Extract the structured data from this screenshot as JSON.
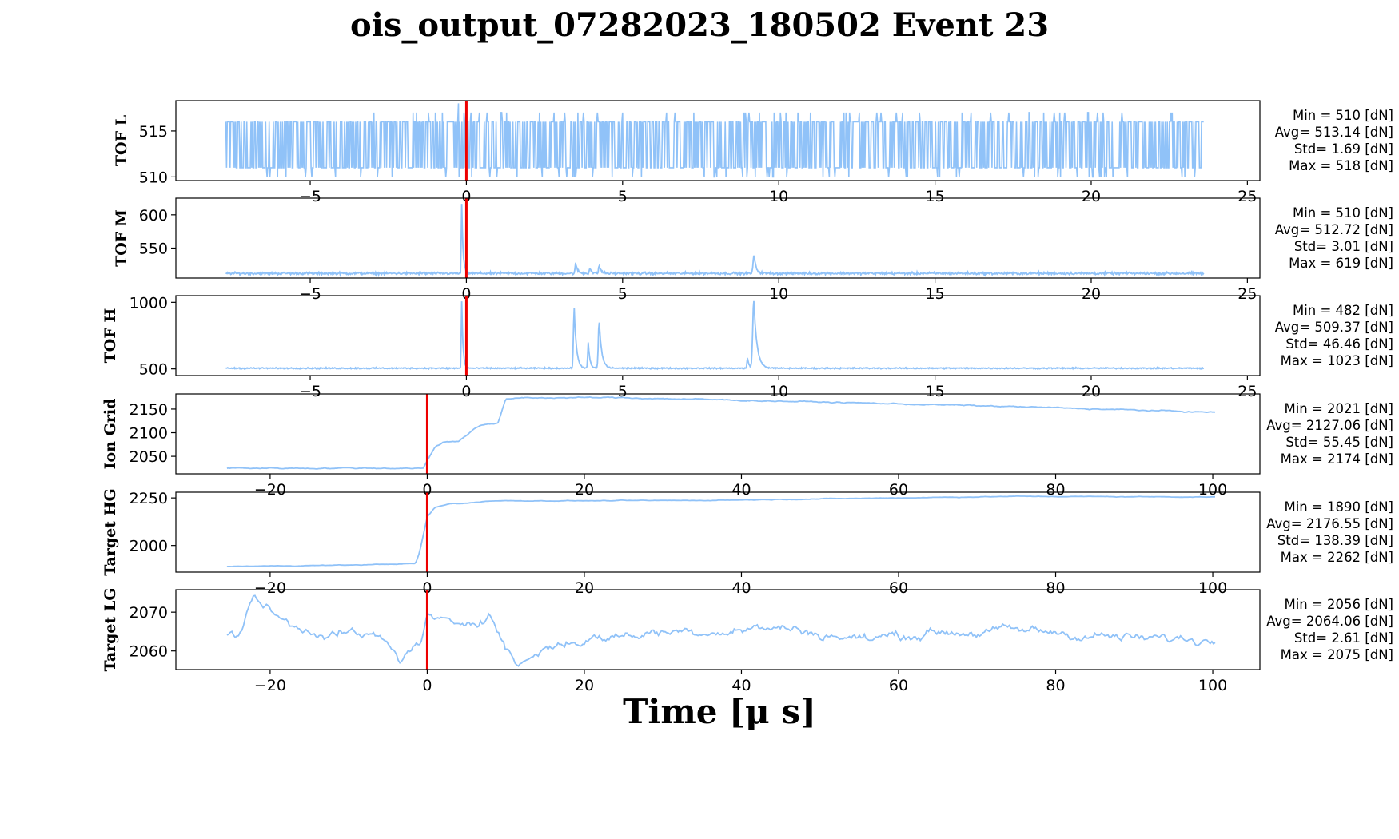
{
  "title": "ois_output_07282023_180502 Event 23",
  "xlabel": "Time [μ s]",
  "colors": {
    "line": "#90c2f8",
    "marker": "#ee0000",
    "axis": "#000000"
  },
  "chart_data": [
    {
      "type": "line",
      "ylabel": "TOF L",
      "xlim": [
        -9.3,
        25.4
      ],
      "ylim": [
        509.6,
        518.3
      ],
      "xticks": [
        -5,
        0,
        5,
        10,
        15,
        20,
        25
      ],
      "xtick_labels": [
        "−5",
        "0",
        "5",
        "10",
        "15",
        "20",
        "25"
      ],
      "yticks": [
        510,
        515
      ],
      "ytick_labels": [
        "510",
        "515"
      ],
      "series": [
        {
          "x_range": [
            -7.7,
            23.6
          ],
          "pattern": "digital_noise",
          "base": 513.1,
          "low": 511,
          "high": 516,
          "rare_low": 510,
          "rare_high": 517,
          "spikes": [
            [
              -1.0,
              517
            ],
            [
              -0.25,
              518
            ],
            [
              2.8,
              517
            ],
            [
              4.2,
              517
            ],
            [
              5.0,
              517
            ],
            [
              19.0,
              517
            ]
          ]
        }
      ],
      "marker_x": 0,
      "stats": [
        "Min = 510 [dN]",
        "Avg= 513.14 [dN]",
        "Std= 1.69 [dN]",
        "Max = 518 [dN]"
      ]
    },
    {
      "type": "line",
      "ylabel": "TOF M",
      "xlim": [
        -9.3,
        25.4
      ],
      "ylim": [
        505,
        625
      ],
      "xticks": [
        -5,
        0,
        5,
        10,
        15,
        20,
        25
      ],
      "xtick_labels": [
        "−5",
        "0",
        "5",
        "10",
        "15",
        "20",
        "25"
      ],
      "yticks": [
        550,
        600
      ],
      "ytick_labels": [
        "550",
        "600"
      ],
      "series": [
        {
          "x_range": [
            -7.7,
            23.6
          ],
          "pattern": "baseline_peaks",
          "base": 512,
          "noise": 1.5,
          "peaks": [
            [
              -0.15,
              619,
              0.04
            ],
            [
              3.5,
              526,
              0.06
            ],
            [
              3.95,
              521,
              0.05
            ],
            [
              4.25,
              524,
              0.06
            ],
            [
              9.2,
              540,
              0.07
            ]
          ]
        }
      ],
      "marker_x": 0,
      "stats": [
        "Min = 510 [dN]",
        "Avg= 512.72 [dN]",
        "Std= 3.01 [dN]",
        "Max = 619 [dN]"
      ]
    },
    {
      "type": "line",
      "ylabel": "TOF H",
      "xlim": [
        -9.3,
        25.4
      ],
      "ylim": [
        450,
        1050
      ],
      "xticks": [
        -5,
        0,
        5,
        10,
        15,
        20,
        25
      ],
      "xtick_labels": [
        "−5",
        "0",
        "5",
        "10",
        "15",
        "20",
        "25"
      ],
      "yticks": [
        500,
        1000
      ],
      "ytick_labels": [
        "500",
        "1000"
      ],
      "series": [
        {
          "x_range": [
            -7.7,
            23.6
          ],
          "pattern": "baseline_peaks",
          "base": 505,
          "noise": 4,
          "peaks": [
            [
              -0.15,
              1023,
              0.04
            ],
            [
              3.45,
              960,
              0.07
            ],
            [
              3.9,
              700,
              0.05
            ],
            [
              4.25,
              860,
              0.08
            ],
            [
              9.0,
              580,
              0.05
            ],
            [
              9.2,
              1020,
              0.1
            ]
          ]
        }
      ],
      "marker_x": 0,
      "stats": [
        "Min = 482 [dN]",
        "Avg= 509.37 [dN]",
        "Std= 46.46 [dN]",
        "Max = 1023 [dN]"
      ]
    },
    {
      "type": "line",
      "ylabel": "Ion Grid",
      "xlim": [
        -32,
        106
      ],
      "ylim": [
        2013,
        2182
      ],
      "xticks": [
        -20,
        0,
        20,
        40,
        60,
        80,
        100
      ],
      "xtick_labels": [
        "−20",
        "0",
        "20",
        "40",
        "60",
        "80",
        "100"
      ],
      "yticks": [
        2050,
        2100,
        2150
      ],
      "ytick_labels": [
        "2050",
        "2100",
        "2150"
      ],
      "series": [
        {
          "x_range": [
            -25.5,
            100.3
          ],
          "pattern": "piecewise",
          "noise": 1.2,
          "points": [
            [
              -25.5,
              2025
            ],
            [
              -0.5,
              2025
            ],
            [
              0,
              2040
            ],
            [
              1,
              2070
            ],
            [
              2,
              2080
            ],
            [
              4,
              2082
            ],
            [
              5,
              2095
            ],
            [
              6,
              2110
            ],
            [
              7,
              2117
            ],
            [
              8,
              2118
            ],
            [
              9,
              2120
            ],
            [
              10,
              2170
            ],
            [
              12,
              2174
            ],
            [
              25,
              2174
            ],
            [
              50,
              2165
            ],
            [
              75,
              2155
            ],
            [
              100.3,
              2143
            ]
          ]
        }
      ],
      "marker_x": 0,
      "stats": [
        "Min = 2021 [dN]",
        "Avg= 2127.06 [dN]",
        "Std= 55.45 [dN]",
        "Max = 2174 [dN]"
      ]
    },
    {
      "type": "line",
      "ylabel": "Target HG",
      "xlim": [
        -32,
        106
      ],
      "ylim": [
        1860,
        2280
      ],
      "xticks": [
        -20,
        0,
        20,
        40,
        60,
        80,
        100
      ],
      "xtick_labels": [
        "−20",
        "0",
        "20",
        "40",
        "60",
        "80",
        "100"
      ],
      "yticks": [
        2000,
        2250
      ],
      "ytick_labels": [
        "2000",
        "2250"
      ],
      "series": [
        {
          "x_range": [
            -25.5,
            100.3
          ],
          "pattern": "piecewise",
          "noise": 1.5,
          "points": [
            [
              -25.5,
              1890
            ],
            [
              -10,
              1897
            ],
            [
              -1.5,
              1905
            ],
            [
              -1,
              1960
            ],
            [
              0,
              2150
            ],
            [
              1,
              2200
            ],
            [
              3,
              2220
            ],
            [
              5,
              2222
            ],
            [
              8,
              2235
            ],
            [
              20,
              2235
            ],
            [
              35,
              2237
            ],
            [
              50,
              2245
            ],
            [
              75,
              2258
            ],
            [
              100.3,
              2255
            ]
          ]
        }
      ],
      "marker_x": 0,
      "stats": [
        "Min = 1890 [dN]",
        "Avg= 2176.55 [dN]",
        "Std= 138.39 [dN]",
        "Max = 2262 [dN]"
      ]
    },
    {
      "type": "line",
      "ylabel": "Target LG",
      "xlim": [
        -32,
        106
      ],
      "ylim": [
        2055.2,
        2075.8
      ],
      "xticks": [
        -20,
        0,
        20,
        40,
        60,
        80,
        100
      ],
      "xtick_labels": [
        "−20",
        "0",
        "20",
        "40",
        "60",
        "80",
        "100"
      ],
      "yticks": [
        2060,
        2070
      ],
      "ytick_labels": [
        "2060",
        "2070"
      ],
      "series": [
        {
          "x_range": [
            -25.5,
            100.3
          ],
          "pattern": "random_walk",
          "noise": 1.3,
          "points": [
            [
              -25.5,
              2064
            ],
            [
              -24,
              2064
            ],
            [
              -22,
              2075
            ],
            [
              -20,
              2070
            ],
            [
              -17,
              2066
            ],
            [
              -12,
              2065
            ],
            [
              -6,
              2063
            ],
            [
              -3.5,
              2058
            ],
            [
              -1,
              2062
            ],
            [
              0,
              2069
            ],
            [
              3,
              2066
            ],
            [
              8,
              2070
            ],
            [
              10,
              2061
            ],
            [
              11.5,
              2056
            ],
            [
              15,
              2061
            ],
            [
              20,
              2063
            ],
            [
              30,
              2065
            ],
            [
              45,
              2066
            ],
            [
              55,
              2063
            ],
            [
              65,
              2065
            ],
            [
              80,
              2065
            ],
            [
              90,
              2063
            ],
            [
              100.3,
              2063
            ]
          ]
        }
      ],
      "marker_x": 0,
      "stats": [
        "Min = 2056 [dN]",
        "Avg= 2064.06 [dN]",
        "Std= 2.61 [dN]",
        "Max = 2075 [dN]"
      ]
    }
  ]
}
